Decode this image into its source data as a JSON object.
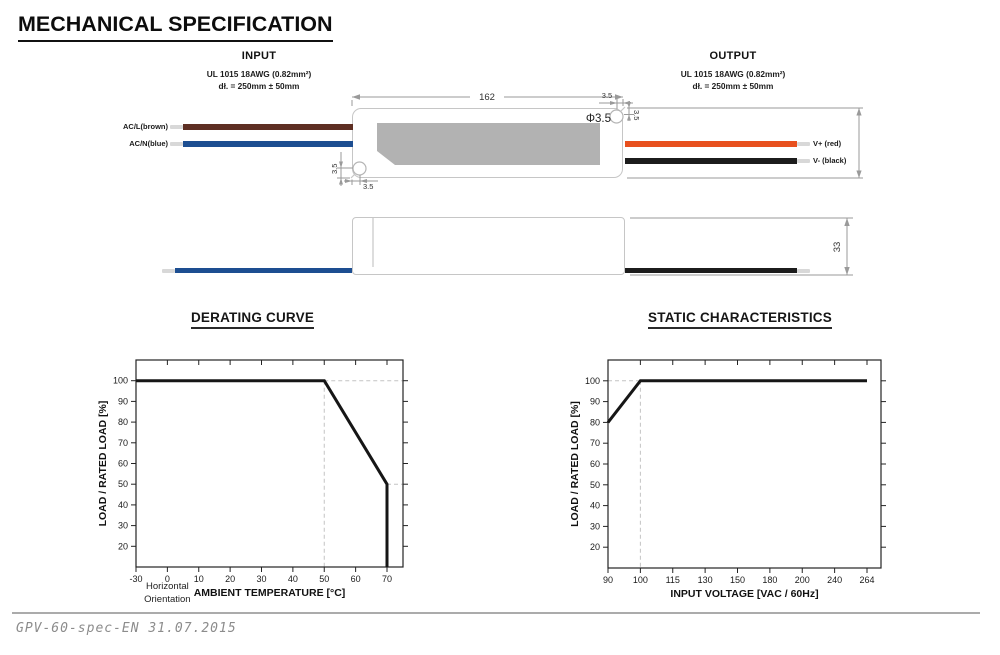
{
  "page": {
    "title": "MECHANICAL SPECIFICATION",
    "footer": "GPV-60-spec-EN 31.07.2015"
  },
  "input_section": {
    "title": "INPUT",
    "line1": "UL 1015 18AWG (0.82mm²)",
    "line2": "dł. = 250mm ± 50mm"
  },
  "output_section": {
    "title": "OUTPUT",
    "line1": "UL 1015 18AWG (0.82mm²)",
    "line2": "dł. = 250mm ± 50mm"
  },
  "drawing": {
    "dims": {
      "length": "162",
      "hole_diameter": "Φ3.5",
      "hole_offset_top_h": "3.5",
      "hole_offset_top_v": "3.5",
      "hole_offset_bottom_v": "3.5",
      "hole_offset_bottom_h": "3.5",
      "side_height": "33"
    },
    "wire_labels": {
      "ac_line": "AC/L(brown)",
      "ac_neutral": "AC/N(blue)",
      "output_positive": "V+ (red)",
      "output_negative": "V- (black)"
    },
    "colors": {
      "wire_brown": "#5e2f23",
      "wire_blue": "#1d4e91",
      "wire_red": "#e8501e",
      "wire_black": "#1c1c1c",
      "case_outline": "#c6c6c6",
      "label_panel": "#b2b2b2",
      "connector_tip": "#d8d8d8"
    }
  },
  "chart_data": [
    {
      "type": "line",
      "title": "DERATING CURVE",
      "xlabel": "AMBIENT TEMPERATURE [°C]",
      "ylabel": "LOAD / RATED LOAD [%]",
      "note": [
        "Horizontal",
        "Orientation"
      ],
      "x_ticks": [
        -30,
        0,
        10,
        20,
        30,
        40,
        50,
        60,
        70
      ],
      "y_ticks": [
        20,
        30,
        40,
        50,
        60,
        70,
        80,
        90,
        100
      ],
      "ylim": [
        10,
        110
      ],
      "grid": false,
      "legend": "none",
      "series": [
        {
          "name": "load-vs-temperature",
          "points": [
            [
              -30,
              100
            ],
            [
              50,
              100
            ],
            [
              70,
              50
            ],
            [
              70,
              0
            ]
          ]
        }
      ],
      "guides": [
        {
          "dir": "h",
          "at": 100,
          "from": 50,
          "to": "right"
        },
        {
          "dir": "h",
          "at": 50,
          "from": 70,
          "to": "right"
        },
        {
          "dir": "v",
          "at": 50,
          "from": 100,
          "to": "bottom"
        }
      ]
    },
    {
      "type": "line",
      "title": "STATIC CHARACTERISTICS",
      "xlabel": "INPUT VOLTAGE [VAC / 60Hz]",
      "ylabel": "LOAD / RATED LOAD [%]",
      "x_ticks": [
        90,
        100,
        115,
        130,
        150,
        180,
        200,
        240,
        264
      ],
      "y_ticks": [
        20,
        30,
        40,
        50,
        60,
        70,
        80,
        90,
        100
      ],
      "ylim": [
        10,
        110
      ],
      "grid": false,
      "legend": "none",
      "series": [
        {
          "name": "load-vs-input-voltage",
          "points": [
            [
              90,
              80
            ],
            [
              100,
              100
            ],
            [
              264,
              100
            ]
          ]
        }
      ],
      "guides": [
        {
          "dir": "h",
          "at": 100,
          "from": "left",
          "to": 100
        },
        {
          "dir": "v",
          "at": 100,
          "from": 100,
          "to": "bottom"
        }
      ]
    }
  ]
}
